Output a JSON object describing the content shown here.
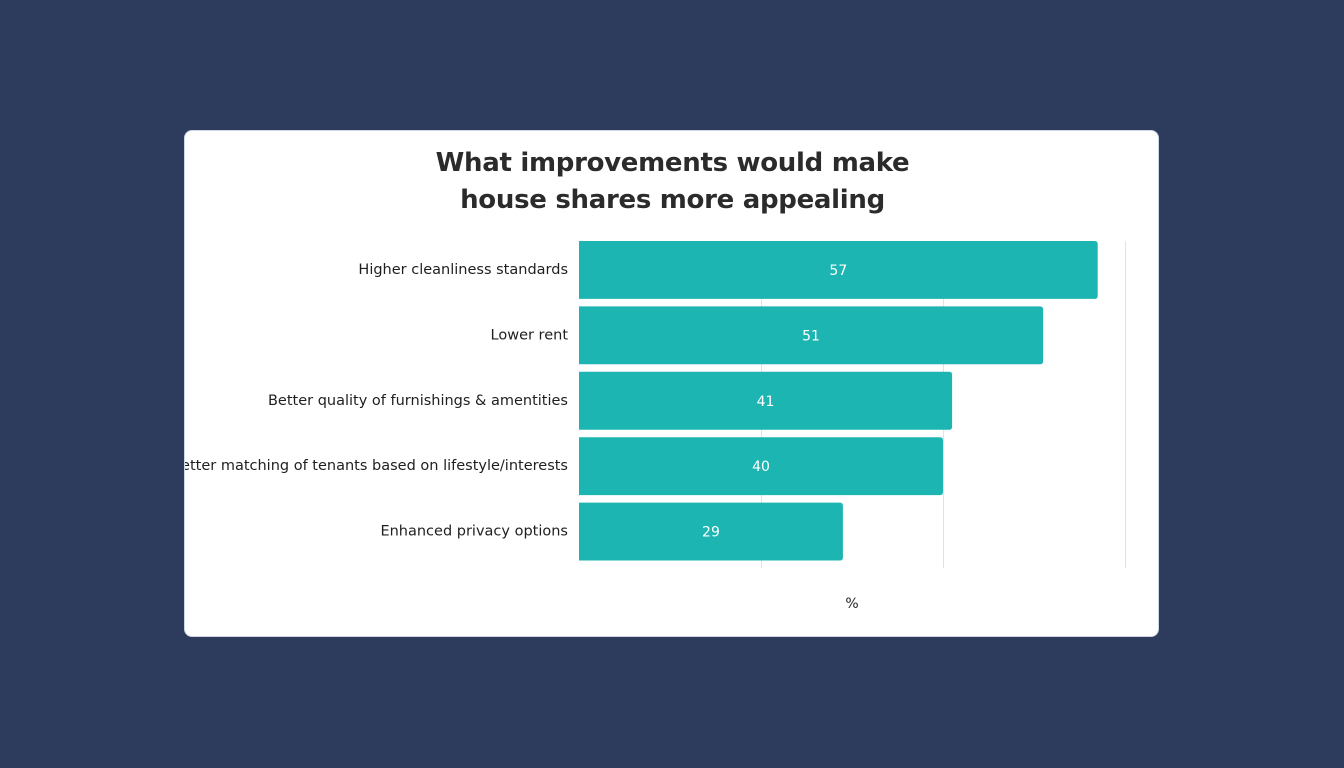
{
  "colors": {
    "background": "#2d3b5d",
    "card": "#ffffff",
    "bar": "#1cb5b2",
    "gridline": "#e2e2e2",
    "text": "#1f1f1f"
  },
  "chart_data": {
    "type": "bar",
    "orientation": "horizontal",
    "title": "What improvements would make house shares more appealing",
    "categories": [
      "Higher cleanliness standards",
      "Lower rent",
      "Better quality of furnishings & amentities",
      "Better matching of tenants based on lifestyle/interests",
      "Enhanced privacy options"
    ],
    "values": [
      57,
      51,
      41,
      40,
      29
    ],
    "data_labels": [
      "57",
      "51",
      "41",
      "40",
      "29"
    ],
    "xlabel": "%",
    "ylabel": "",
    "xlim": [
      0,
      60
    ],
    "gridlines": [
      20,
      40,
      60
    ],
    "grid": true,
    "legend": "none"
  }
}
